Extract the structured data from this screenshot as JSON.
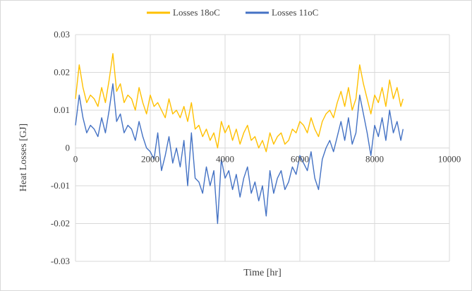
{
  "chart_data": {
    "type": "line",
    "title": "",
    "xlabel": "Time [hr]",
    "ylabel": "Heat Losses [GJ]",
    "xlim": [
      0,
      10000
    ],
    "ylim": [
      -0.03,
      0.03
    ],
    "x_ticks": [
      0,
      2000,
      4000,
      6000,
      8000,
      10000
    ],
    "x_tick_labels": [
      "0",
      "2000",
      "4000",
      "6000",
      "8000",
      "10000"
    ],
    "y_ticks": [
      0.03,
      0.02,
      0.01,
      0,
      -0.01,
      -0.02,
      -0.03
    ],
    "y_tick_labels": [
      "0.03",
      "0.02",
      "0.01",
      "0",
      "-0.01",
      "-0.02",
      "-0.03"
    ],
    "grid": "horizontal and vertical",
    "legend_position": "top",
    "series": [
      {
        "name": "Losses 18oC",
        "color": "#FFC000",
        "x": [
          0,
          100,
          200,
          300,
          400,
          500,
          600,
          700,
          800,
          900,
          1000,
          1100,
          1200,
          1300,
          1400,
          1500,
          1600,
          1700,
          1800,
          1900,
          2000,
          2100,
          2200,
          2300,
          2400,
          2500,
          2600,
          2700,
          2800,
          2900,
          3000,
          3100,
          3200,
          3300,
          3400,
          3500,
          3600,
          3700,
          3800,
          3900,
          4000,
          4100,
          4200,
          4300,
          4400,
          4500,
          4600,
          4700,
          4800,
          4900,
          5000,
          5100,
          5200,
          5300,
          5400,
          5500,
          5600,
          5700,
          5800,
          5900,
          6000,
          6100,
          6200,
          6300,
          6400,
          6500,
          6600,
          6700,
          6800,
          6900,
          7000,
          7100,
          7200,
          7300,
          7400,
          7500,
          7600,
          7700,
          7800,
          7900,
          8000,
          8100,
          8200,
          8300,
          8400,
          8500,
          8600,
          8700,
          8760
        ],
        "y": [
          0.013,
          0.022,
          0.016,
          0.012,
          0.014,
          0.013,
          0.011,
          0.016,
          0.012,
          0.018,
          0.025,
          0.015,
          0.017,
          0.012,
          0.014,
          0.013,
          0.01,
          0.016,
          0.012,
          0.009,
          0.014,
          0.011,
          0.012,
          0.01,
          0.008,
          0.013,
          0.009,
          0.01,
          0.008,
          0.011,
          0.007,
          0.012,
          0.005,
          0.006,
          0.003,
          0.005,
          0.002,
          0.004,
          0.0,
          0.007,
          0.004,
          0.006,
          0.002,
          0.005,
          0.001,
          0.004,
          0.006,
          0.002,
          0.003,
          0.0,
          0.002,
          -0.001,
          0.004,
          0.001,
          0.003,
          0.004,
          0.001,
          0.002,
          0.005,
          0.004,
          0.007,
          0.006,
          0.004,
          0.008,
          0.005,
          0.003,
          0.007,
          0.009,
          0.01,
          0.008,
          0.012,
          0.015,
          0.011,
          0.016,
          0.01,
          0.013,
          0.022,
          0.017,
          0.013,
          0.009,
          0.014,
          0.012,
          0.016,
          0.011,
          0.018,
          0.013,
          0.016,
          0.011,
          0.013
        ]
      },
      {
        "name": "Losses 11oC",
        "color": "#4472C4",
        "x": [
          0,
          100,
          200,
          300,
          400,
          500,
          600,
          700,
          800,
          900,
          1000,
          1100,
          1200,
          1300,
          1400,
          1500,
          1600,
          1700,
          1800,
          1900,
          2000,
          2100,
          2200,
          2300,
          2400,
          2500,
          2600,
          2700,
          2800,
          2900,
          3000,
          3100,
          3200,
          3300,
          3400,
          3500,
          3600,
          3700,
          3800,
          3900,
          4000,
          4100,
          4200,
          4300,
          4400,
          4500,
          4600,
          4700,
          4800,
          4900,
          5000,
          5100,
          5200,
          5300,
          5400,
          5500,
          5600,
          5700,
          5800,
          5900,
          6000,
          6100,
          6200,
          6300,
          6400,
          6500,
          6600,
          6700,
          6800,
          6900,
          7000,
          7100,
          7200,
          7300,
          7400,
          7500,
          7600,
          7700,
          7800,
          7900,
          8000,
          8100,
          8200,
          8300,
          8400,
          8500,
          8600,
          8700,
          8760
        ],
        "y": [
          0.006,
          0.014,
          0.008,
          0.004,
          0.006,
          0.005,
          0.003,
          0.008,
          0.004,
          0.01,
          0.017,
          0.007,
          0.009,
          0.004,
          0.006,
          0.005,
          0.002,
          0.007,
          0.003,
          0.0,
          -0.001,
          -0.003,
          0.004,
          -0.006,
          -0.002,
          0.003,
          -0.004,
          0.0,
          -0.005,
          0.002,
          -0.01,
          0.004,
          -0.008,
          -0.009,
          -0.012,
          -0.005,
          -0.01,
          -0.006,
          -0.02,
          -0.003,
          -0.008,
          -0.006,
          -0.011,
          -0.007,
          -0.013,
          -0.008,
          -0.005,
          -0.012,
          -0.009,
          -0.014,
          -0.01,
          -0.018,
          -0.006,
          -0.012,
          -0.008,
          -0.006,
          -0.011,
          -0.009,
          -0.005,
          -0.007,
          -0.002,
          -0.004,
          -0.006,
          -0.001,
          -0.008,
          -0.011,
          -0.003,
          0.0,
          0.002,
          -0.001,
          0.003,
          0.007,
          0.002,
          0.008,
          0.001,
          0.004,
          0.014,
          0.009,
          0.004,
          -0.002,
          0.006,
          0.003,
          0.008,
          0.002,
          0.01,
          0.004,
          0.007,
          0.002,
          0.005
        ]
      }
    ]
  }
}
